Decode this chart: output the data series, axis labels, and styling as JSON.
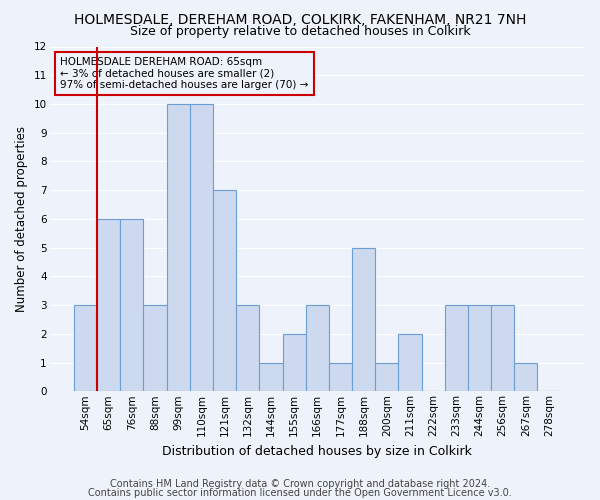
{
  "title": "HOLMESDALE, DEREHAM ROAD, COLKIRK, FAKENHAM, NR21 7NH",
  "subtitle": "Size of property relative to detached houses in Colkirk",
  "xlabel": "Distribution of detached houses by size in Colkirk",
  "ylabel": "Number of detached properties",
  "categories": [
    "54sqm",
    "65sqm",
    "76sqm",
    "88sqm",
    "99sqm",
    "110sqm",
    "121sqm",
    "132sqm",
    "144sqm",
    "155sqm",
    "166sqm",
    "177sqm",
    "188sqm",
    "200sqm",
    "211sqm",
    "222sqm",
    "233sqm",
    "244sqm",
    "256sqm",
    "267sqm",
    "278sqm"
  ],
  "values": [
    3,
    6,
    6,
    3,
    10,
    10,
    7,
    3,
    1,
    2,
    3,
    1,
    5,
    1,
    2,
    0,
    3,
    3,
    3,
    1,
    0
  ],
  "bar_color": "#cdd9ee",
  "bar_edge_color": "#6b9fd4",
  "highlight_index": 1,
  "highlight_line_color": "#cc0000",
  "annotation_text": "HOLMESDALE DEREHAM ROAD: 65sqm\n← 3% of detached houses are smaller (2)\n97% of semi-detached houses are larger (70) →",
  "annotation_box_edge_color": "#cc0000",
  "ylim": [
    0,
    12
  ],
  "yticks": [
    0,
    1,
    2,
    3,
    4,
    5,
    6,
    7,
    8,
    9,
    10,
    11,
    12
  ],
  "footer1": "Contains HM Land Registry data © Crown copyright and database right 2024.",
  "footer2": "Contains public sector information licensed under the Open Government Licence v3.0.",
  "bg_color": "#eef2fa",
  "grid_color": "#ffffff",
  "title_fontsize": 10,
  "subtitle_fontsize": 9,
  "xlabel_fontsize": 9,
  "ylabel_fontsize": 8.5,
  "tick_fontsize": 7.5,
  "annotation_fontsize": 7.5,
  "footer_fontsize": 7
}
